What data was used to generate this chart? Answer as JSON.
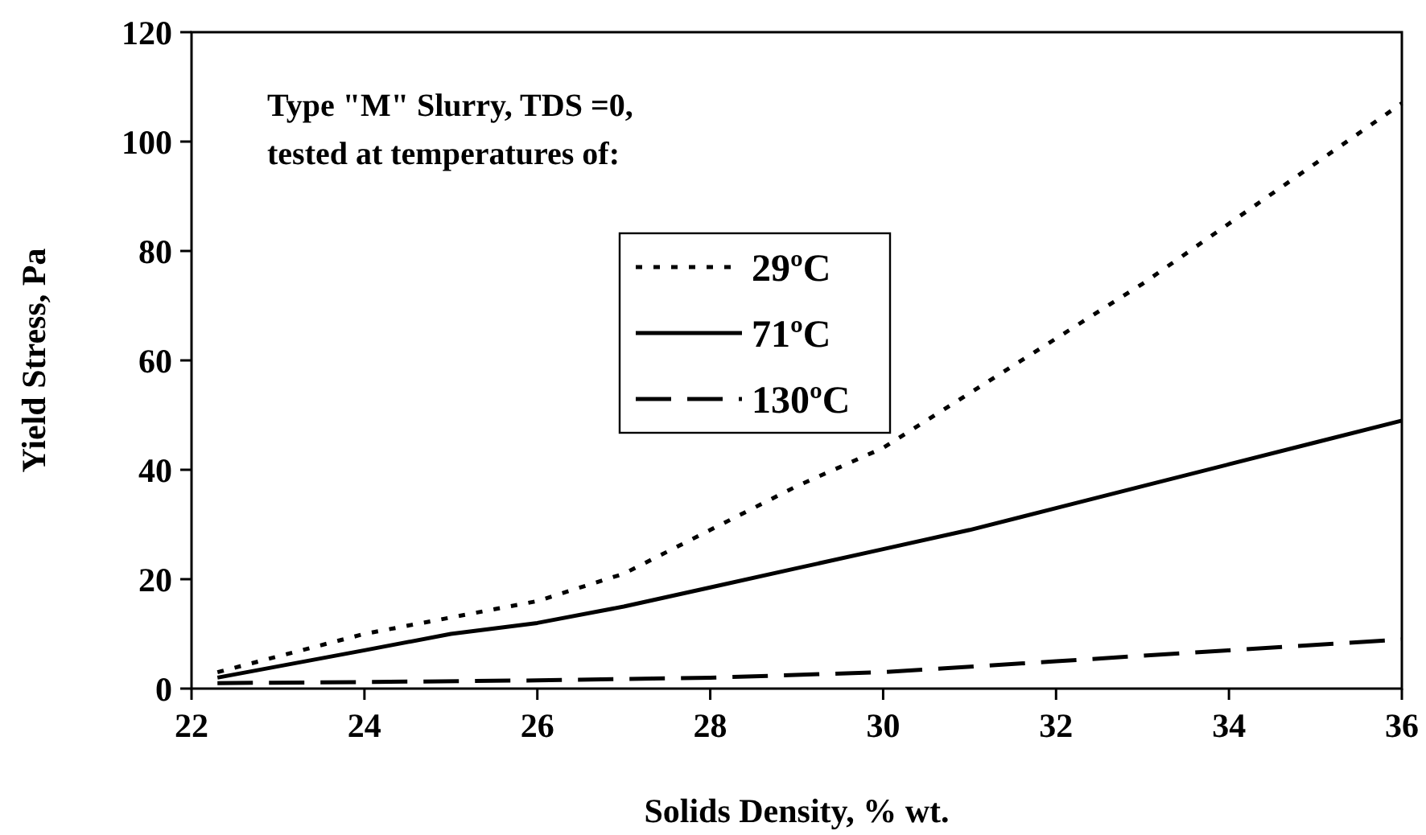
{
  "chart_data": {
    "type": "line",
    "xlabel": "Solids Density, % wt.",
    "ylabel": "Yield Stress, Pa",
    "annotations": [
      "Type \"M\" Slurry, TDS =0,",
      "tested at temperatures of:"
    ],
    "xlim": [
      22,
      36
    ],
    "xticks": [
      22,
      24,
      26,
      28,
      30,
      32,
      34,
      36
    ],
    "ylim": [
      0,
      120
    ],
    "yticks": [
      0,
      20,
      40,
      60,
      80,
      100,
      120
    ],
    "grid": false,
    "legend": "top",
    "marker": "none",
    "series": [
      {
        "name": "29ºC",
        "color": "#000000",
        "line_style": "dotted",
        "x": [
          22.3,
          24,
          26,
          27,
          28,
          29,
          30,
          31,
          32,
          33,
          34,
          35,
          36
        ],
        "values": [
          3,
          10,
          16,
          21,
          29,
          37,
          44,
          54,
          64,
          74,
          85,
          96,
          107
        ]
      },
      {
        "name": "71ºC",
        "color": "#000000",
        "line_style": "solid",
        "x": [
          22.3,
          24,
          25,
          26,
          27,
          28,
          29,
          30,
          31,
          32,
          33,
          34,
          35,
          36
        ],
        "values": [
          2,
          7,
          10,
          12,
          15,
          18.5,
          22,
          25.5,
          29,
          33,
          37,
          41,
          45,
          49
        ]
      },
      {
        "name": "130ºC",
        "color": "#000000",
        "line_style": "dashed",
        "x": [
          22.3,
          24,
          26,
          28,
          30,
          32,
          34,
          36
        ],
        "values": [
          1,
          1.2,
          1.5,
          2,
          3,
          5,
          7,
          9
        ]
      }
    ]
  }
}
